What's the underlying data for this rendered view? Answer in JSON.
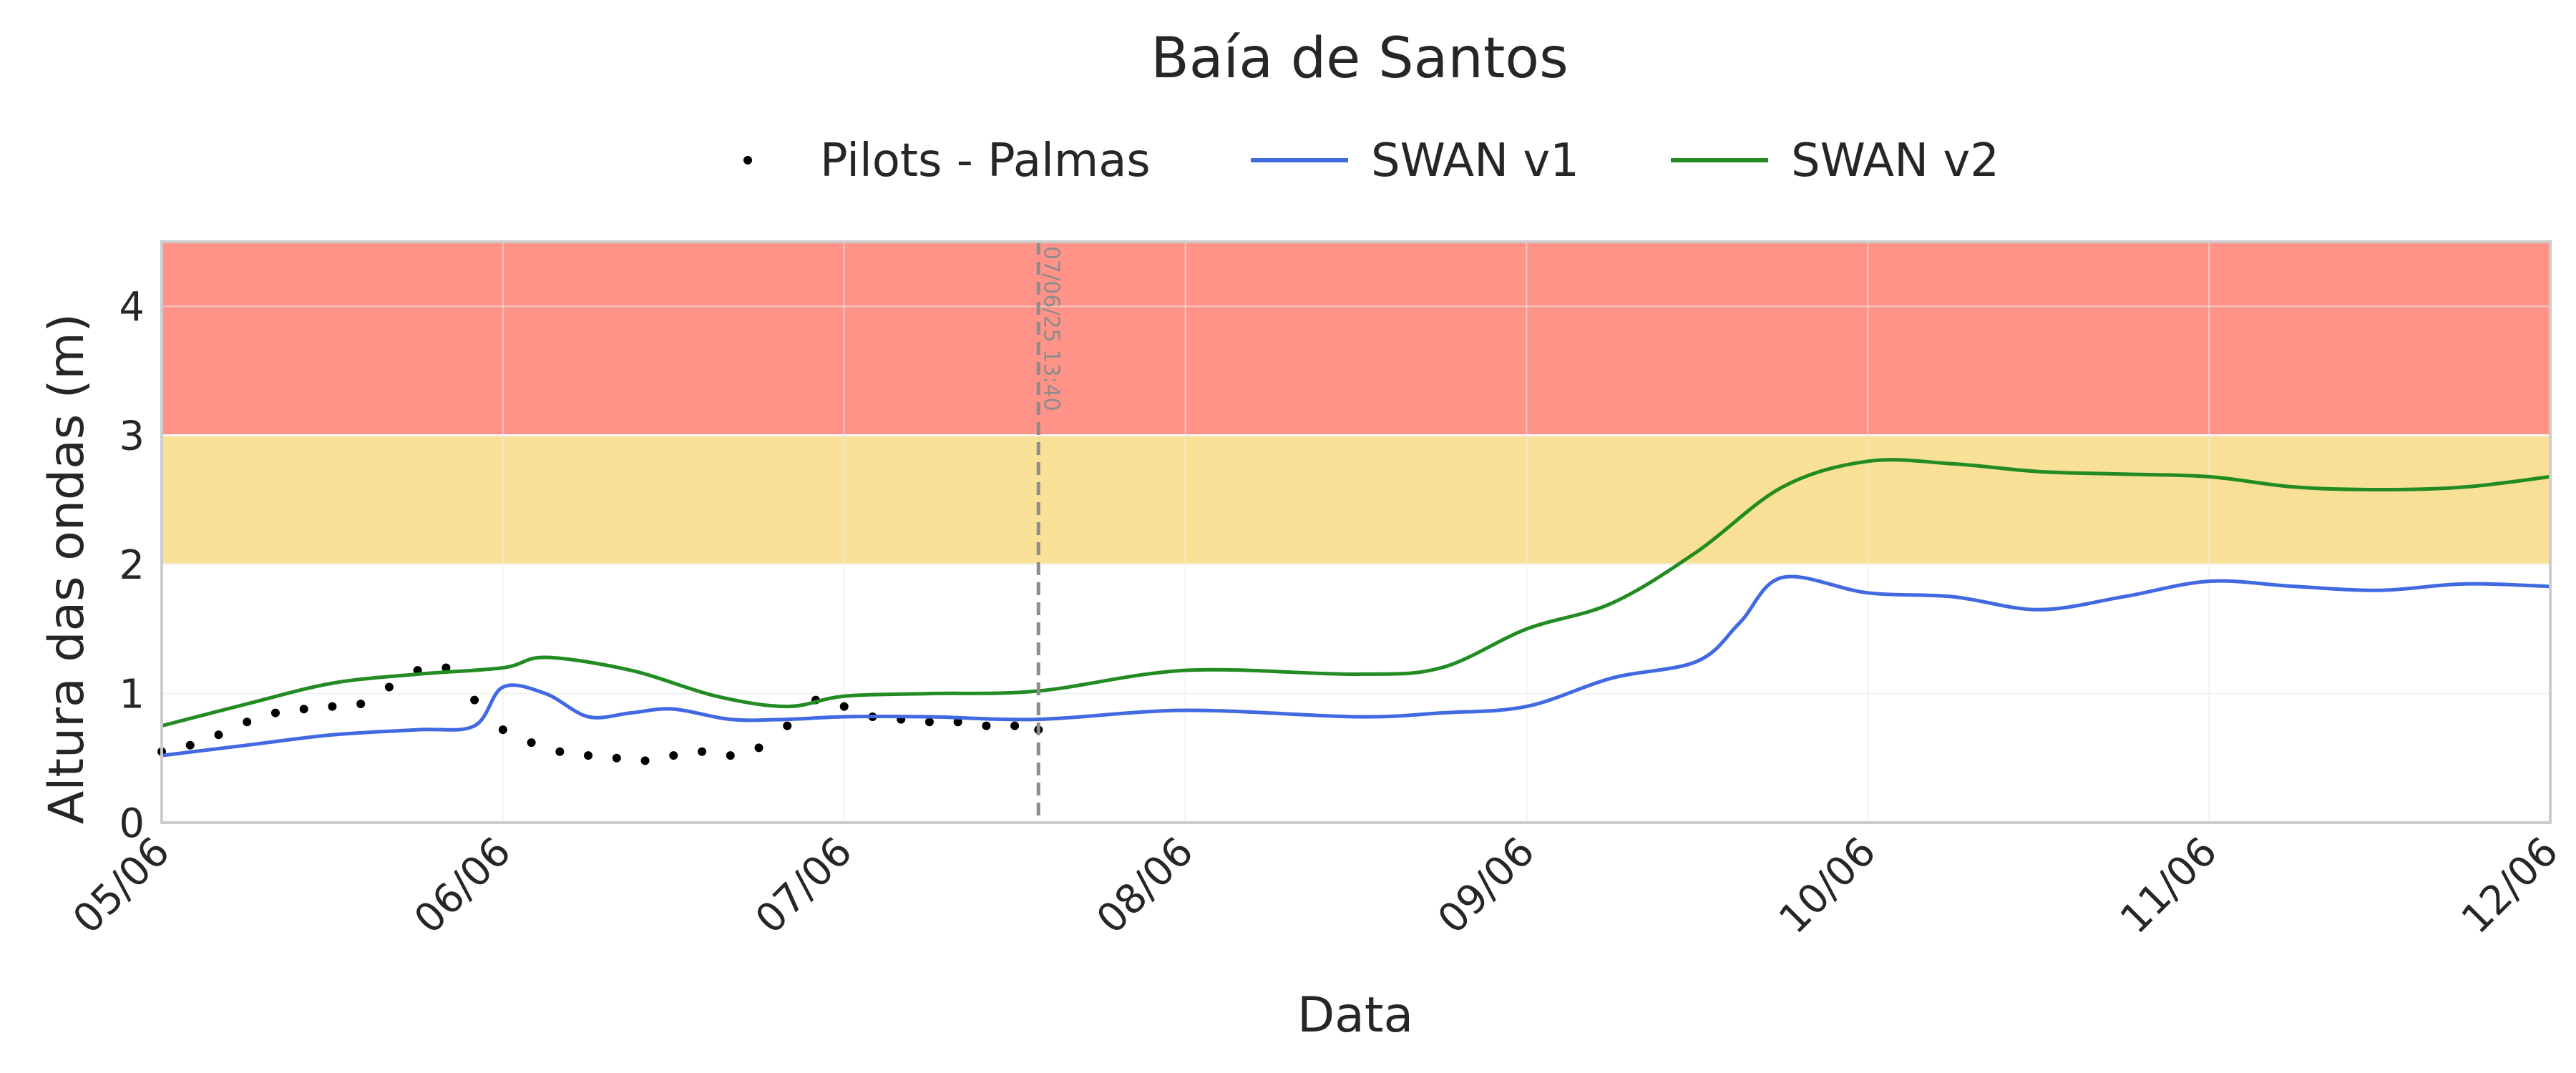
{
  "chart_data": {
    "type": "line",
    "title": "Baía de Santos",
    "xlabel": "Data",
    "ylabel": "Altura das ondas (m)",
    "xlim": [
      "2025-06-05 00:00",
      "2025-06-12 00:00"
    ],
    "ylim": [
      0,
      4.5
    ],
    "x_ticks": [
      "05/06",
      "06/06",
      "07/06",
      "08/06",
      "09/06",
      "10/06",
      "11/06",
      "12/06"
    ],
    "y_ticks": [
      0,
      1,
      2,
      3,
      4
    ],
    "grid": true,
    "legend": {
      "placement": "top-center",
      "entries": [
        "Pilots - Palmas",
        "SWAN v1",
        "SWAN v2"
      ]
    },
    "bands": [
      {
        "from": 2,
        "to": 3,
        "color": "#f8e196"
      },
      {
        "from": 3,
        "to": 4.5,
        "color": "#ff9388"
      }
    ],
    "vline": {
      "x": "2025-06-07 13:40",
      "label": "07/06/25 13:40",
      "color": "#8c8c8c"
    },
    "series": [
      {
        "name": "Pilots - Palmas",
        "kind": "scatter",
        "color": "#000000",
        "x": [
          "2025-06-05 00:00",
          "2025-06-05 02:00",
          "2025-06-05 04:00",
          "2025-06-05 06:00",
          "2025-06-05 08:00",
          "2025-06-05 10:00",
          "2025-06-05 12:00",
          "2025-06-05 14:00",
          "2025-06-05 16:00",
          "2025-06-05 18:00",
          "2025-06-05 20:00",
          "2025-06-05 22:00",
          "2025-06-06 00:00",
          "2025-06-06 02:00",
          "2025-06-06 04:00",
          "2025-06-06 06:00",
          "2025-06-06 08:00",
          "2025-06-06 10:00",
          "2025-06-06 12:00",
          "2025-06-06 14:00",
          "2025-06-06 16:00",
          "2025-06-06 18:00",
          "2025-06-06 20:00",
          "2025-06-06 22:00",
          "2025-06-07 00:00",
          "2025-06-07 02:00",
          "2025-06-07 04:00",
          "2025-06-07 06:00",
          "2025-06-07 08:00",
          "2025-06-07 10:00",
          "2025-06-07 12:00",
          "2025-06-07 13:40"
        ],
        "y": [
          0.55,
          0.6,
          0.68,
          0.78,
          0.85,
          0.88,
          0.9,
          0.92,
          1.05,
          1.18,
          1.2,
          0.95,
          0.72,
          0.62,
          0.55,
          0.52,
          0.5,
          0.48,
          0.52,
          0.55,
          0.52,
          0.58,
          0.75,
          0.95,
          0.9,
          0.82,
          0.8,
          0.78,
          0.78,
          0.75,
          0.75,
          0.72
        ]
      },
      {
        "name": "SWAN v1",
        "kind": "line",
        "color": "#4169e1",
        "x": [
          "2025-06-05 00:00",
          "2025-06-05 06:00",
          "2025-06-05 12:00",
          "2025-06-05 18:00",
          "2025-06-05 22:00",
          "2025-06-06 00:00",
          "2025-06-06 03:00",
          "2025-06-06 06:00",
          "2025-06-06 09:00",
          "2025-06-06 12:00",
          "2025-06-06 16:00",
          "2025-06-06 20:00",
          "2025-06-07 00:00",
          "2025-06-07 06:00",
          "2025-06-07 13:40",
          "2025-06-08 00:00",
          "2025-06-08 12:00",
          "2025-06-08 18:00",
          "2025-06-09 00:00",
          "2025-06-09 06:00",
          "2025-06-09 12:00",
          "2025-06-09 15:00",
          "2025-06-09 18:00",
          "2025-06-10 00:00",
          "2025-06-10 06:00",
          "2025-06-10 12:00",
          "2025-06-10 18:00",
          "2025-06-11 00:00",
          "2025-06-11 06:00",
          "2025-06-11 12:00",
          "2025-06-11 18:00",
          "2025-06-12 00:00"
        ],
        "y": [
          0.52,
          0.6,
          0.68,
          0.72,
          0.75,
          1.05,
          1.0,
          0.82,
          0.85,
          0.88,
          0.8,
          0.8,
          0.82,
          0.82,
          0.8,
          0.87,
          0.82,
          0.85,
          0.9,
          1.12,
          1.25,
          1.55,
          1.9,
          1.78,
          1.75,
          1.65,
          1.75,
          1.87,
          1.83,
          1.8,
          1.85,
          1.83
        ]
      },
      {
        "name": "SWAN v2",
        "kind": "line",
        "color": "#228b22",
        "x": [
          "2025-06-05 00:00",
          "2025-06-05 06:00",
          "2025-06-05 12:00",
          "2025-06-05 18:00",
          "2025-06-06 00:00",
          "2025-06-06 03:00",
          "2025-06-06 09:00",
          "2025-06-06 15:00",
          "2025-06-06 20:00",
          "2025-06-07 00:00",
          "2025-06-07 06:00",
          "2025-06-07 13:40",
          "2025-06-08 00:00",
          "2025-06-08 12:00",
          "2025-06-08 18:00",
          "2025-06-09 00:00",
          "2025-06-09 06:00",
          "2025-06-09 12:00",
          "2025-06-09 18:00",
          "2025-06-10 00:00",
          "2025-06-10 06:00",
          "2025-06-10 12:00",
          "2025-06-10 18:00",
          "2025-06-11 00:00",
          "2025-06-11 06:00",
          "2025-06-11 12:00",
          "2025-06-11 18:00",
          "2025-06-12 00:00"
        ],
        "y": [
          0.75,
          0.92,
          1.08,
          1.15,
          1.2,
          1.28,
          1.18,
          0.98,
          0.9,
          0.98,
          1.0,
          1.02,
          1.18,
          1.15,
          1.2,
          1.5,
          1.7,
          2.1,
          2.6,
          2.8,
          2.78,
          2.72,
          2.7,
          2.68,
          2.6,
          2.58,
          2.6,
          2.68
        ]
      }
    ]
  }
}
